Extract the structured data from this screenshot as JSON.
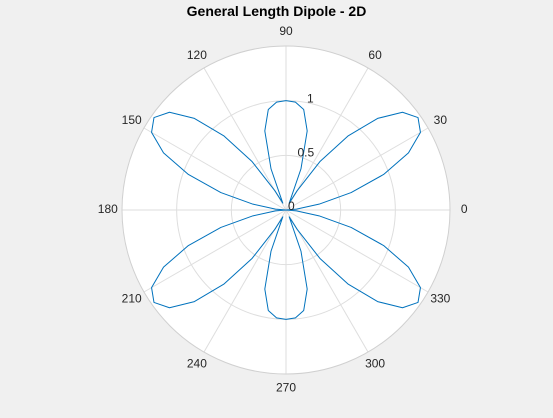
{
  "chart_data": {
    "type": "line",
    "subtype": "polar",
    "title": "General Length Dipole - 2D",
    "theta_unit": "degrees",
    "theta_ticks": [
      "0",
      "30",
      "60",
      "90",
      "120",
      "150",
      "180",
      "210",
      "240",
      "270",
      "300",
      "330"
    ],
    "r_ticks": [
      "0",
      "0.5",
      "1"
    ],
    "rlim": [
      0,
      1.5
    ],
    "grid": true,
    "series": [
      {
        "color": "#0072bd",
        "theta": [
          0,
          5,
          10,
          15,
          20,
          25,
          30,
          35,
          40,
          45,
          50,
          55,
          60,
          65,
          70,
          75,
          80,
          85,
          90,
          95,
          100,
          105,
          110,
          115,
          120,
          125,
          130,
          135,
          140,
          145,
          150,
          155,
          160,
          165,
          170,
          175,
          180,
          185,
          190,
          195,
          200,
          205,
          210,
          215,
          220,
          225,
          230,
          235,
          240,
          245,
          250,
          255,
          260,
          265,
          270,
          275,
          280,
          285,
          290,
          295,
          300,
          305,
          310,
          315,
          320,
          325,
          330,
          335,
          340,
          345,
          350,
          355,
          360
        ],
        "r": [
          0.0,
          0.096,
          0.307,
          0.617,
          0.95,
          1.236,
          1.42,
          1.474,
          1.391,
          1.185,
          0.886,
          0.54,
          0.204,
          0.069,
          0.4,
          0.749,
          0.933,
          0.99,
          1.0,
          0.99,
          0.933,
          0.749,
          0.4,
          0.069,
          0.204,
          0.54,
          0.886,
          1.185,
          1.391,
          1.474,
          1.42,
          1.236,
          0.95,
          0.617,
          0.307,
          0.096,
          0.0,
          0.096,
          0.307,
          0.617,
          0.95,
          1.236,
          1.42,
          1.474,
          1.391,
          1.185,
          0.886,
          0.54,
          0.204,
          0.069,
          0.4,
          0.749,
          0.933,
          0.99,
          1.0,
          0.99,
          0.933,
          0.749,
          0.4,
          0.069,
          0.204,
          0.54,
          0.886,
          1.185,
          1.391,
          1.474,
          1.42,
          1.236,
          0.95,
          0.617,
          0.307,
          0.096,
          0.0
        ]
      }
    ]
  }
}
